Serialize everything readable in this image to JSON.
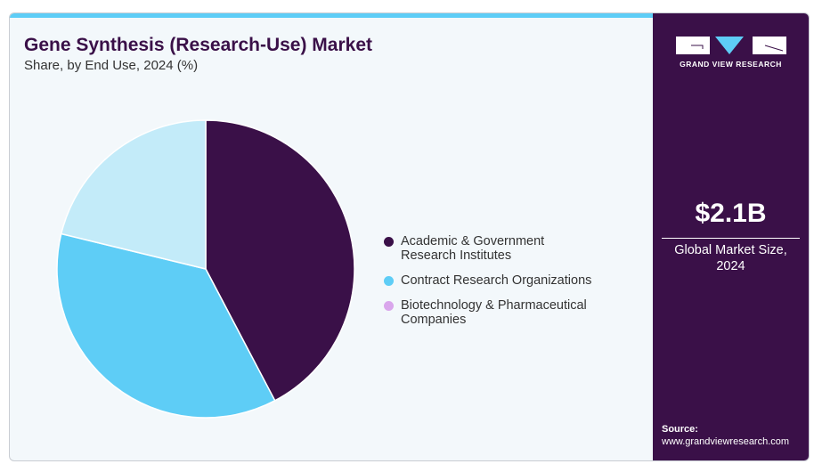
{
  "chart_data": {
    "type": "pie",
    "title": "Gene Synthesis (Research-Use) Market",
    "subtitle": "Share, by End Use, 2024 (%)",
    "categories": [
      "Academic & Government Research Institutes",
      "Contract Research Organizations",
      "Biotechnology & Pharmaceutical Companies"
    ],
    "legend": [
      {
        "line1": "Academic & Government",
        "line2": "Research Institutes",
        "color": "#3a1048"
      },
      {
        "line1": "Contract Research Organizations",
        "line2": "",
        "color": "#5ecdf6"
      },
      {
        "line1": "Biotechnology & Pharmaceutical",
        "line2": "Companies",
        "color": "#d9a6ec"
      }
    ],
    "values": [
      42.3,
      36.5,
      21.2
    ],
    "slice_colors": [
      "#3a1048",
      "#5ecdf6",
      "#c3ebf9"
    ],
    "legend_placement": "right"
  },
  "sidebar": {
    "brand": "GRAND VIEW RESEARCH",
    "market_size": "$2.1B",
    "market_label_1": "Global Market Size,",
    "market_label_2": "2024",
    "source_label": "Source:",
    "source_url": "www.grandviewresearch.com"
  }
}
